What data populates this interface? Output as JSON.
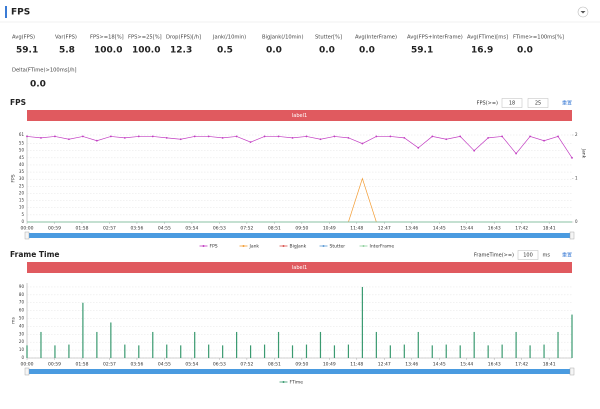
{
  "header": {
    "title": "FPS"
  },
  "stats": [
    {
      "label": "Avg(FPS)",
      "value": "59.1"
    },
    {
      "label": "Var(FPS)",
      "value": "5.8"
    },
    {
      "label": "FPS>=18[%]",
      "value": "100.0"
    },
    {
      "label": "FPS>=25[%]",
      "value": "100.0"
    },
    {
      "label": "Drop(FPS)[/h]",
      "value": "12.3"
    },
    {
      "label": "Jank(/10min)",
      "value": "0.5"
    },
    {
      "label": "BigJank(/10min)",
      "value": "0.0"
    },
    {
      "label": "Stutter[%]",
      "value": "0.0"
    },
    {
      "label": "Avg(InterFrame)",
      "value": "0.0"
    },
    {
      "label": "Avg(FPS+InterFrame)",
      "value": "59.1"
    },
    {
      "label": "Avg(FTime)[ms]",
      "value": "16.9"
    },
    {
      "label": "FTime>=100ms[%]",
      "value": "0.0"
    },
    {
      "label": "Delta(FTime)>100ms[/h]",
      "value": "0.0"
    }
  ],
  "chart_data": [
    {
      "type": "line",
      "title": "FPS",
      "threshold_label": "FPS(>=)",
      "thresholds": [
        "18",
        "25"
      ],
      "reset": "重置",
      "band_label": "label1",
      "y_label": "FPS",
      "y2_label": "Jank",
      "x": [
        0,
        30,
        60,
        90,
        120,
        150,
        180,
        210,
        240,
        270,
        300,
        330,
        360,
        390,
        420,
        450,
        480,
        510,
        540,
        570,
        600,
        630,
        660,
        690,
        720,
        750,
        780,
        810,
        840,
        870,
        900,
        930,
        960,
        990,
        1020,
        1050,
        1080,
        1110,
        1140,
        1170
      ],
      "xlim": [
        0,
        1170
      ],
      "xticks": [
        {
          "value": 0,
          "label": "00:00"
        },
        {
          "value": 59,
          "label": "00:59"
        },
        {
          "value": 118,
          "label": "01:58"
        },
        {
          "value": 177,
          "label": "02:57"
        },
        {
          "value": 236,
          "label": "03:56"
        },
        {
          "value": 295,
          "label": "04:55"
        },
        {
          "value": 354,
          "label": "05:54"
        },
        {
          "value": 413,
          "label": "06:53"
        },
        {
          "value": 472,
          "label": "07:52"
        },
        {
          "value": 531,
          "label": "08:51"
        },
        {
          "value": 590,
          "label": "09:50"
        },
        {
          "value": 649,
          "label": "10:49"
        },
        {
          "value": 708,
          "label": "11:48"
        },
        {
          "value": 767,
          "label": "12:47"
        },
        {
          "value": 826,
          "label": "13:46"
        },
        {
          "value": 885,
          "label": "14:45"
        },
        {
          "value": 944,
          "label": "15:44"
        },
        {
          "value": 1003,
          "label": "16:43"
        },
        {
          "value": 1062,
          "label": "17:42"
        },
        {
          "value": 1121,
          "label": "18:41"
        }
      ],
      "ylim": [
        0,
        61
      ],
      "yticks": [
        0,
        5,
        10,
        15,
        20,
        25,
        30,
        35,
        40,
        45,
        50,
        55,
        61
      ],
      "y2lim": [
        0,
        2
      ],
      "y2ticks": [
        0,
        1,
        2
      ],
      "grid": true,
      "legend": "bottom",
      "series": [
        {
          "name": "FPS",
          "color": "#c23ec2",
          "markers": true,
          "values": [
            60,
            59,
            60,
            58,
            60,
            57,
            60,
            59,
            60,
            60,
            59,
            58,
            60,
            60,
            59,
            60,
            56,
            60,
            60,
            59,
            60,
            58,
            60,
            59,
            55,
            60,
            60,
            59,
            52,
            60,
            58,
            60,
            50,
            59,
            60,
            48,
            60,
            57,
            60,
            45
          ]
        },
        {
          "name": "Jank",
          "color": "#f39c33",
          "axis": "y2",
          "values": [
            0,
            0,
            0,
            0,
            0,
            0,
            0,
            0,
            0,
            0,
            0,
            0,
            0,
            0,
            0,
            0,
            0,
            0,
            0,
            0,
            0,
            0,
            0,
            0,
            1,
            0,
            0,
            0,
            0,
            0,
            0,
            0,
            0,
            0,
            0,
            0,
            0,
            0,
            0,
            0
          ]
        },
        {
          "name": "BigJank",
          "color": "#d9534f",
          "axis": "y2",
          "values": [
            0,
            0,
            0,
            0,
            0,
            0,
            0,
            0,
            0,
            0,
            0,
            0,
            0,
            0,
            0,
            0,
            0,
            0,
            0,
            0,
            0,
            0,
            0,
            0,
            0,
            0,
            0,
            0,
            0,
            0,
            0,
            0,
            0,
            0,
            0,
            0,
            0,
            0,
            0,
            0
          ]
        },
        {
          "name": "Stutter",
          "color": "#5b9bd5",
          "values": [
            0,
            0,
            0,
            0,
            0,
            0,
            0,
            0,
            0,
            0,
            0,
            0,
            0,
            0,
            0,
            0,
            0,
            0,
            0,
            0,
            0,
            0,
            0,
            0,
            0,
            0,
            0,
            0,
            0,
            0,
            0,
            0,
            0,
            0,
            0,
            0,
            0,
            0,
            0,
            0
          ]
        },
        {
          "name": "InterFrame",
          "color": "#8fd19e",
          "values": [
            0,
            0,
            0,
            0,
            0,
            0,
            0,
            0,
            0,
            0,
            0,
            0,
            0,
            0,
            0,
            0,
            0,
            0,
            0,
            0,
            0,
            0,
            0,
            0,
            0,
            0,
            0,
            0,
            0,
            0,
            0,
            0,
            0,
            0,
            0,
            0,
            0,
            0,
            0,
            0
          ]
        }
      ]
    },
    {
      "type": "bar",
      "title": "Frame Time",
      "threshold_label": "FrameTime(>=)",
      "thresholds": [
        "100"
      ],
      "unit": "ms",
      "reset": "重置",
      "band_label": "label1",
      "y_label": "ms",
      "x": [
        0,
        30,
        60,
        90,
        120,
        150,
        180,
        210,
        240,
        270,
        300,
        330,
        360,
        390,
        420,
        450,
        480,
        510,
        540,
        570,
        600,
        630,
        660,
        690,
        720,
        750,
        780,
        810,
        840,
        870,
        900,
        930,
        960,
        990,
        1020,
        1050,
        1080,
        1110,
        1140,
        1170
      ],
      "xlim": [
        0,
        1170
      ],
      "xticks": [
        {
          "value": 0,
          "label": "00:00"
        },
        {
          "value": 59,
          "label": "00:59"
        },
        {
          "value": 118,
          "label": "01:58"
        },
        {
          "value": 177,
          "label": "02:57"
        },
        {
          "value": 236,
          "label": "03:56"
        },
        {
          "value": 295,
          "label": "04:55"
        },
        {
          "value": 354,
          "label": "05:54"
        },
        {
          "value": 413,
          "label": "06:53"
        },
        {
          "value": 472,
          "label": "07:52"
        },
        {
          "value": 531,
          "label": "08:51"
        },
        {
          "value": 590,
          "label": "09:50"
        },
        {
          "value": 649,
          "label": "10:49"
        },
        {
          "value": 708,
          "label": "11:48"
        },
        {
          "value": 767,
          "label": "12:47"
        },
        {
          "value": 826,
          "label": "13:46"
        },
        {
          "value": 885,
          "label": "14:45"
        },
        {
          "value": 944,
          "label": "15:44"
        },
        {
          "value": 1003,
          "label": "16:43"
        },
        {
          "value": 1062,
          "label": "17:42"
        },
        {
          "value": 1121,
          "label": "18:41"
        }
      ],
      "ylim": [
        0,
        95
      ],
      "yticks": [
        0,
        10,
        20,
        30,
        40,
        50,
        60,
        70,
        80,
        90
      ],
      "grid": true,
      "legend": "bottom",
      "series": [
        {
          "name": "FTime",
          "color": "#3a9a70",
          "values": [
            16,
            33,
            16,
            17,
            70,
            33,
            45,
            17,
            16,
            33,
            17,
            16,
            33,
            17,
            16,
            33,
            16,
            17,
            33,
            16,
            17,
            33,
            16,
            17,
            90,
            33,
            16,
            17,
            33,
            16,
            17,
            16,
            33,
            16,
            17,
            33,
            16,
            17,
            33,
            55
          ]
        }
      ]
    }
  ]
}
